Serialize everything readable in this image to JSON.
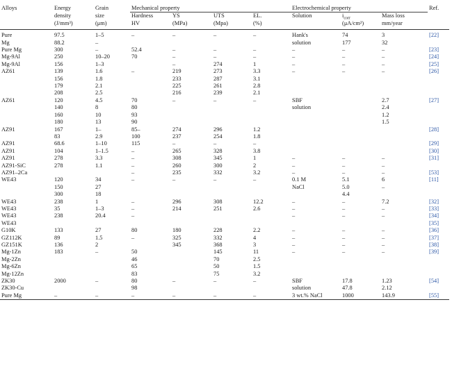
{
  "headers": {
    "alloys": "Alloys",
    "energy_density": [
      "Energy",
      "density",
      "(J/mm³)"
    ],
    "grain_size": [
      "Grain",
      "size",
      "(μm)"
    ],
    "mechanical_property": "Mechanical property",
    "hardness": [
      "Hardness",
      "HV"
    ],
    "ys": [
      "YS",
      "(MPa)"
    ],
    "uts": [
      "UTS",
      "(Mpa)"
    ],
    "el": [
      "EL.",
      "(%)"
    ],
    "electrochemical_property": "Electrochemical property",
    "solution": "Solution",
    "icorr": [
      "i_corr",
      "(μA/cm²)"
    ],
    "mass_loss": [
      "Mass loss",
      "mm/year"
    ],
    "ref": "Ref."
  },
  "rows": [
    [
      "Pure",
      "97.5",
      "1–5",
      "–",
      "–",
      "–",
      "–",
      "Hank's",
      "74",
      "3",
      "[22]"
    ],
    [
      "Mg",
      "88.2",
      "–",
      "",
      "",
      "",
      "",
      "solution",
      "177",
      "32",
      ""
    ],
    [
      "Pure Mg",
      "300",
      "–",
      "52.4",
      "–",
      "–",
      "–",
      "–",
      "–",
      "–",
      "[23]"
    ],
    [
      "Mg-9Al",
      "250",
      "10–20",
      "70",
      "–",
      "–",
      "–",
      "–",
      "–",
      "–",
      "[24]"
    ],
    [
      "Mg-9Al",
      "156",
      "1–3",
      "",
      "–",
      "274",
      "1",
      "–",
      "–",
      "–",
      "[25]"
    ],
    [
      "AZ61",
      "139",
      "1.6",
      "–",
      "219",
      "273",
      "3.3",
      "–",
      "–",
      "–",
      "[26]"
    ],
    [
      "",
      "156",
      "1.8",
      "",
      "233",
      "287",
      "3.1",
      "",
      "",
      "",
      ""
    ],
    [
      "",
      "179",
      "2.1",
      "",
      "225",
      "261",
      "2.8",
      "",
      "",
      "",
      ""
    ],
    [
      "",
      "208",
      "2.5",
      "",
      "216",
      "239",
      "2.1",
      "",
      "",
      "",
      ""
    ],
    [
      "AZ61",
      "120",
      "4.5",
      "70",
      "–",
      "–",
      "–",
      "SBF",
      "",
      "2.7",
      "[27]"
    ],
    [
      "",
      "140",
      "8",
      "80",
      "",
      "",
      "",
      "solution",
      "",
      "2.4",
      ""
    ],
    [
      "",
      "160",
      "10",
      "93",
      "",
      "",
      "",
      "",
      "",
      "1.2",
      ""
    ],
    [
      "",
      "180",
      "13",
      "90",
      "",
      "",
      "",
      "",
      "",
      "1.5",
      ""
    ],
    [
      "AZ91",
      "167",
      "1–",
      "85–",
      "274",
      "296",
      "1.2",
      "",
      "",
      "",
      "[28]"
    ],
    [
      "",
      "83",
      "2.9",
      "100",
      "237",
      "254",
      "1.8",
      "",
      "",
      "",
      ""
    ],
    [
      "AZ91",
      "68.6",
      "1–10",
      "115",
      "–",
      "–",
      "–",
      "",
      "",
      "",
      "[29]"
    ],
    [
      "AZ91",
      "104",
      "1–1.5",
      "–",
      "265",
      "328",
      "3.8",
      "",
      "",
      "",
      "[30]"
    ],
    [
      "AZ91",
      "278",
      "3.3",
      "–",
      "308",
      "345",
      "1",
      "–",
      "–",
      "–",
      "[31]"
    ],
    [
      "AZ91-SiC",
      "278",
      "1.1",
      "–",
      "260",
      "300",
      "2",
      "–",
      "–",
      "–",
      ""
    ],
    [
      "AZ91–2Ca",
      "",
      "",
      "–",
      "235",
      "332",
      "3.2",
      "–",
      "–",
      "–",
      "[53]"
    ],
    [
      "WE43",
      "120",
      "34",
      "–",
      "–",
      "–",
      "–",
      "0.1 M",
      "5.1",
      "6",
      "[11]"
    ],
    [
      "",
      "150",
      "27",
      "",
      "",
      "",
      "",
      "NaCl",
      "5.0",
      "–",
      ""
    ],
    [
      "",
      "300",
      "18",
      "",
      "",
      "",
      "",
      "",
      "4.4",
      "",
      ""
    ],
    [
      "WE43",
      "238",
      "1",
      "–",
      "296",
      "308",
      "12.2",
      "–",
      "–",
      "7.2",
      "[32]"
    ],
    [
      "WE43",
      "35",
      "1–3",
      "–",
      "214",
      "251",
      "2.6",
      "–",
      "–",
      "–",
      "[33]"
    ],
    [
      "WE43",
      "238",
      "20.4",
      "–",
      "",
      "",
      "",
      "–",
      "–",
      "–",
      "[34]"
    ],
    [
      "WE43",
      "",
      "",
      "",
      "",
      "",
      "",
      "",
      "",
      "",
      "[35]"
    ],
    [
      "G10K",
      "133",
      "27",
      "80",
      "180",
      "228",
      "2.2",
      "–",
      "–",
      "–",
      "[36]"
    ],
    [
      "GZ112K",
      "89",
      "1.5",
      "–",
      "325",
      "332",
      "4",
      "–",
      "–",
      "–",
      "[37]"
    ],
    [
      "GZ151K",
      "136",
      "2",
      "",
      "345",
      "368",
      "3",
      "–",
      "–",
      "–",
      "[38]"
    ],
    [
      "Mg-1Zn",
      "183",
      "–",
      "50",
      "",
      "145",
      "11",
      "–",
      "–",
      "–",
      "[39]"
    ],
    [
      "Mg-2Zn",
      "",
      "",
      "46",
      "",
      "70",
      "2.5",
      "",
      "",
      "",
      ""
    ],
    [
      "Mg-6Zn",
      "",
      "",
      "65",
      "",
      "50",
      "1.5",
      "",
      "",
      "",
      ""
    ],
    [
      "Mg-12Zn",
      "",
      "",
      "83",
      "",
      "75",
      "3.2",
      "",
      "",
      "",
      ""
    ],
    [
      "ZK30",
      "2000",
      "–",
      "80",
      "–",
      "–",
      "–",
      "SBF",
      "17.8",
      "1.23",
      "[54]"
    ],
    [
      "ZK30-Cu",
      "",
      "",
      "98",
      "",
      "",
      "",
      "solution",
      "47.8",
      "2.12",
      ""
    ],
    [
      "Pure Mg",
      "–",
      "–",
      "–",
      "–",
      "–",
      "–",
      "3 wt.% NaCl",
      "1000",
      "143.9",
      "[55]"
    ]
  ]
}
